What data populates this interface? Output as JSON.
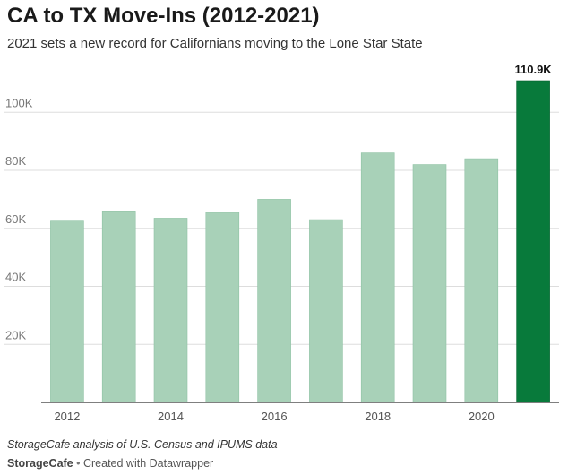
{
  "header": {
    "title": "CA to TX Move-Ins (2012-2021)",
    "subtitle": "2021 sets a new record for Californians moving to the Lone Star State"
  },
  "footer": {
    "note": "StorageCafe analysis of U.S. Census and IPUMS data",
    "logo_text": "StorageCafe",
    "credit": "Created with Datawrapper"
  },
  "colors": {
    "bar": "#a8d1b8",
    "highlight": "#087a3b",
    "grid": "#dddddd",
    "axis_text": "#777777",
    "baseline": "#333333"
  },
  "chart_data": {
    "type": "bar",
    "title": "CA to TX Move-Ins (2012-2021)",
    "subtitle": "2021 sets a new record for Californians moving to the Lone Star State",
    "categories": [
      "2012",
      "2013",
      "2014",
      "2015",
      "2016",
      "2017",
      "2018",
      "2019",
      "2020",
      "2021"
    ],
    "x_tick_labels": [
      "2012",
      "2014",
      "2016",
      "2018",
      "2020"
    ],
    "values": [
      62500,
      66000,
      63500,
      65500,
      70000,
      63000,
      86000,
      82000,
      84000,
      110900
    ],
    "highlight_index": 9,
    "highlight_label": "110.9K",
    "ylim": [
      0,
      110900
    ],
    "y_ticks": [
      20000,
      40000,
      60000,
      80000,
      100000
    ],
    "y_tick_labels": [
      "20K",
      "40K",
      "60K",
      "80K",
      "100K"
    ],
    "grid": true,
    "legend": "none",
    "xlabel": "",
    "ylabel": ""
  }
}
